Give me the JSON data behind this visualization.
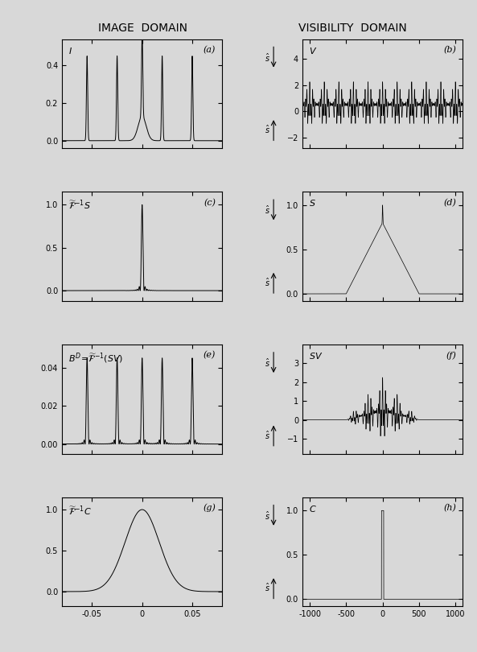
{
  "title_left": "IMAGE  DOMAIN",
  "title_right": "VISIBILITY  DOMAIN",
  "background_color": "#d8d8d8",
  "panel_labels": [
    "(a)",
    "(b)",
    "(c)",
    "(d)",
    "(e)",
    "(f)",
    "(g)",
    "(h)"
  ],
  "xlim_image": [
    -0.08,
    0.08
  ],
  "xlim_vis": [
    -1100,
    1100
  ],
  "xticks_image": [
    -0.05,
    0.0,
    0.05
  ],
  "xticks_vis": [
    -1000,
    -500,
    0,
    500,
    1000
  ],
  "xticklabels_image": [
    "-0.05",
    "0",
    "0.05"
  ],
  "xticklabels_vis": [
    "-1000",
    "-500",
    "0",
    "500",
    "1000"
  ]
}
